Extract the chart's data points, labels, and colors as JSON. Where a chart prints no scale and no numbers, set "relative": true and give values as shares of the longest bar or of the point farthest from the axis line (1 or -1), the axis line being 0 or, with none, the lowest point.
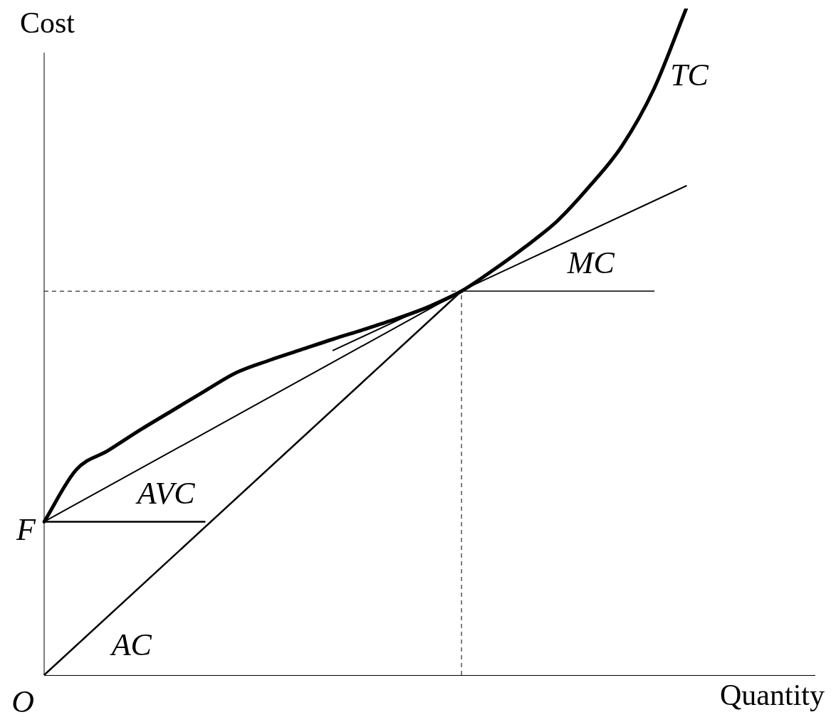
{
  "chart_data": {
    "type": "line",
    "relative": true,
    "xlabel": "Quantity",
    "ylabel": "Cost",
    "grid": false,
    "legend": false,
    "marker": "none",
    "line_style": "solid",
    "categories": [
      null,
      null,
      null,
      null,
      null,
      null,
      null,
      null,
      null,
      null,
      null,
      null,
      null,
      null,
      null,
      null,
      null,
      null,
      null,
      null,
      null,
      null,
      null,
      null,
      null
    ],
    "series": [
      {
        "name": "TC",
        "color": "#000000",
        "values": [
          0.23,
          0.308,
          0.337,
          0.368,
          0.397,
          0.426,
          0.454,
          0.472,
          0.488,
          0.504,
          0.519,
          0.535,
          0.553,
          0.576,
          0.608,
          0.643,
          0.682,
          0.734,
          0.794,
          0.88,
          1,
          null,
          null,
          null,
          null
        ]
      },
      {
        "name": "AVC",
        "color": "#000000",
        "values": [
          0.23,
          null,
          null,
          null,
          null,
          null,
          null,
          null,
          null,
          null,
          null,
          null,
          null,
          0.576,
          null,
          null,
          null,
          null,
          null,
          null,
          null,
          null,
          null,
          null,
          null
        ]
      },
      {
        "name": "AC",
        "color": "#000000",
        "values": [
          0,
          null,
          null,
          null,
          null,
          null,
          null,
          null,
          null,
          null,
          null,
          null,
          null,
          0.576,
          null,
          null,
          null,
          null,
          null,
          null,
          null,
          null,
          null,
          null,
          null
        ]
      },
      {
        "name": "MC",
        "color": "#000000",
        "values": [
          null,
          null,
          null,
          null,
          null,
          null,
          null,
          null,
          null,
          0.487,
          null,
          null,
          null,
          null,
          null,
          null,
          null,
          null,
          null,
          null,
          0.734,
          null,
          null,
          null,
          null
        ]
      },
      {
        "color": "#000000",
        "values": [
          0.23,
          null,
          null,
          null,
          null,
          0.23,
          null,
          null,
          null,
          null,
          null,
          null,
          null,
          null,
          null,
          null,
          null,
          null,
          null,
          null,
          null,
          null,
          null,
          null,
          null
        ]
      },
      {
        "color": "#000000",
        "values": [
          null,
          null,
          null,
          null,
          null,
          null,
          null,
          null,
          null,
          null,
          null,
          null,
          null,
          0.576,
          null,
          null,
          null,
          null,
          null,
          0.576,
          null,
          null,
          null,
          null,
          null
        ]
      }
    ],
    "ref_lines": [
      {
        "axis": "y",
        "value": 0.576,
        "line_style": "dashed"
      }
    ],
    "annotations": [
      "F",
      "O"
    ]
  }
}
